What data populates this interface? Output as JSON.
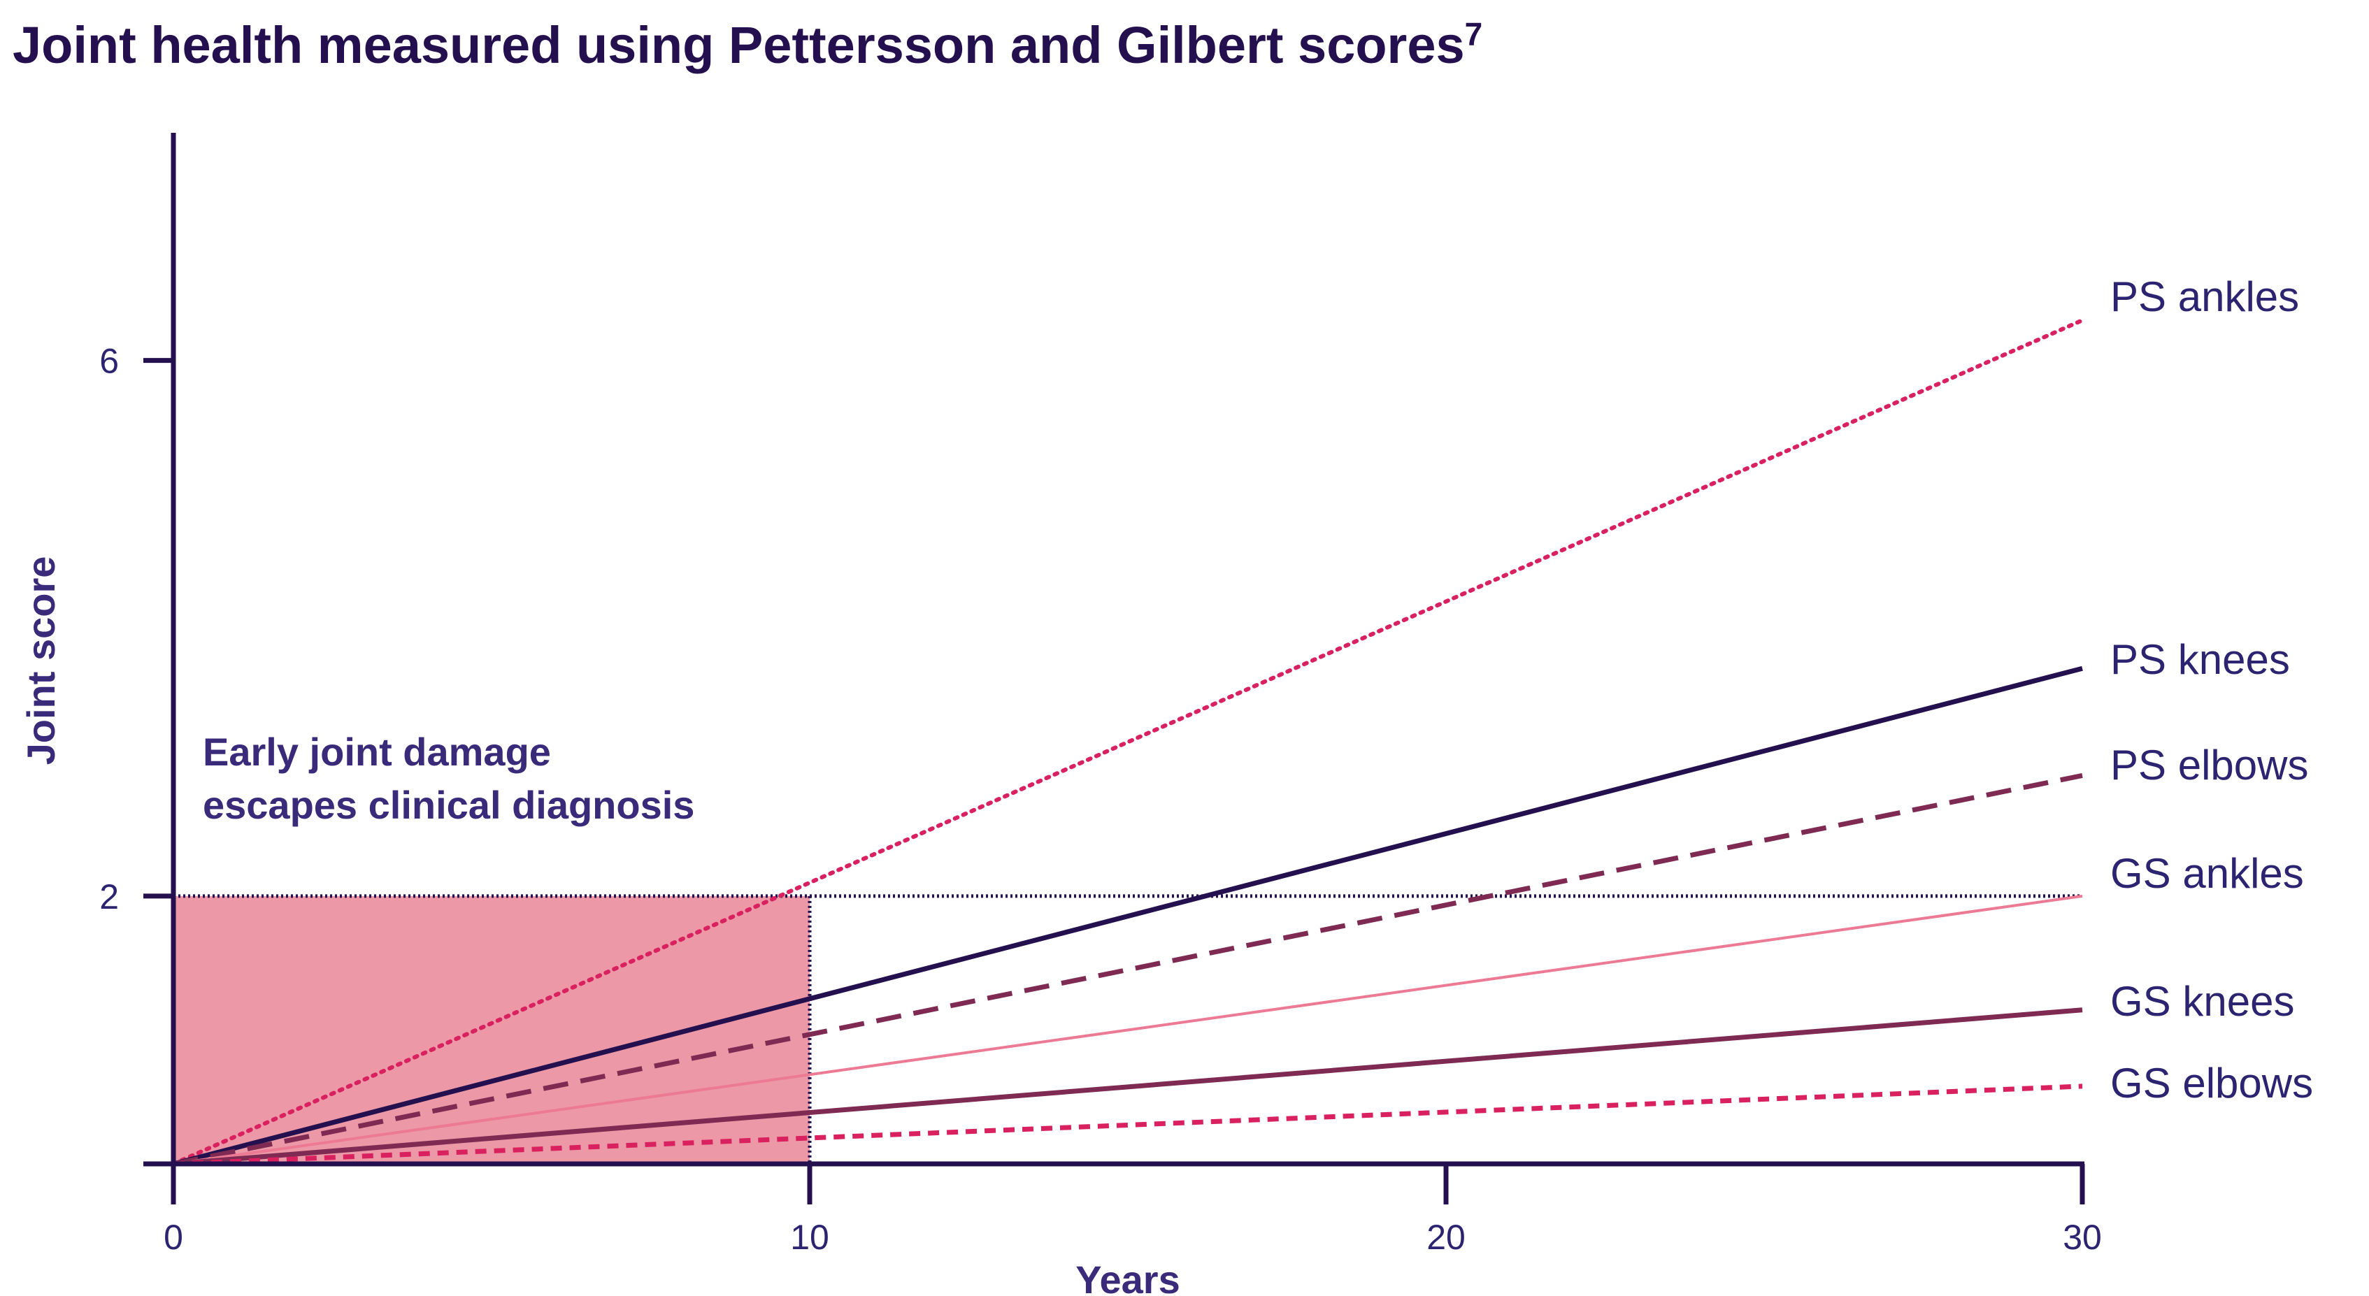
{
  "title": "Joint health measured using Pettersson and Gilbert scores",
  "title_superscript": "7",
  "chart_data": {
    "type": "line",
    "xlabel": "Years",
    "ylabel": "Joint score",
    "xlim": [
      0,
      30
    ],
    "ylim": [
      0,
      7.7
    ],
    "xticks": [
      0,
      10,
      20,
      30
    ],
    "yticks": [
      2,
      6
    ],
    "grid": false,
    "threshold": {
      "y": 2,
      "style": "dotted"
    },
    "shaded_region": {
      "x": [
        0,
        10
      ],
      "y": [
        0,
        2
      ],
      "color": "#ec98a6"
    },
    "annotation": [
      "Early joint damage",
      "escapes clinical diagnosis"
    ],
    "series": [
      {
        "name": "PS ankles",
        "x": [
          0,
          30
        ],
        "y": [
          0,
          6.3
        ],
        "color": "#d8215e",
        "style": "dotted"
      },
      {
        "name": "PS knees",
        "x": [
          0,
          30
        ],
        "y": [
          0,
          3.7
        ],
        "color": "#24104e",
        "style": "solid"
      },
      {
        "name": "PS elbows",
        "x": [
          0,
          30
        ],
        "y": [
          0,
          2.9
        ],
        "color": "#7e2a52",
        "style": "dashed"
      },
      {
        "name": "GS ankles",
        "x": [
          0,
          30
        ],
        "y": [
          0,
          2.0
        ],
        "color": "#ec7a94",
        "style": "thin"
      },
      {
        "name": "GS knees",
        "x": [
          0,
          30
        ],
        "y": [
          0,
          1.15
        ],
        "color": "#7e2a52",
        "style": "solid"
      },
      {
        "name": "GS elbows",
        "x": [
          0,
          30
        ],
        "y": [
          0,
          0.58
        ],
        "color": "#d8215e",
        "style": "short-dash"
      }
    ]
  }
}
